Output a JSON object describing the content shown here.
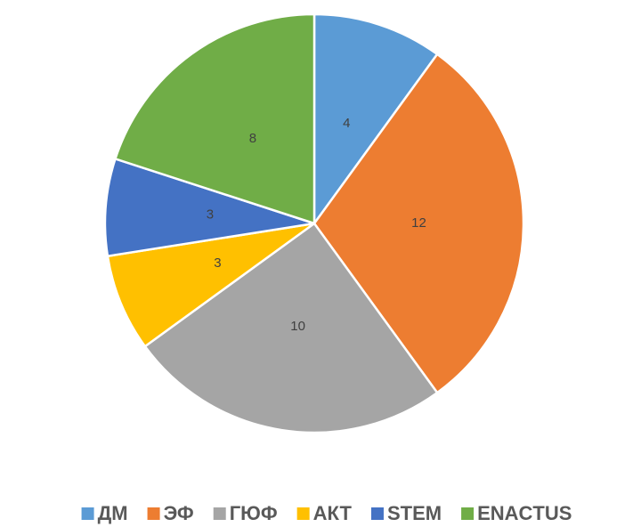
{
  "chart_data": {
    "type": "pie",
    "categories": [
      "ДМ",
      "ЭФ",
      "ГЮФ",
      "АКТ",
      "STEM",
      "ENACTUS"
    ],
    "values": [
      4,
      12,
      10,
      3,
      3,
      8
    ],
    "colors": [
      "#5b9bd5",
      "#ed7d31",
      "#a5a5a5",
      "#ffc000",
      "#4472c4",
      "#70ad47"
    ],
    "legend": "bottom"
  }
}
